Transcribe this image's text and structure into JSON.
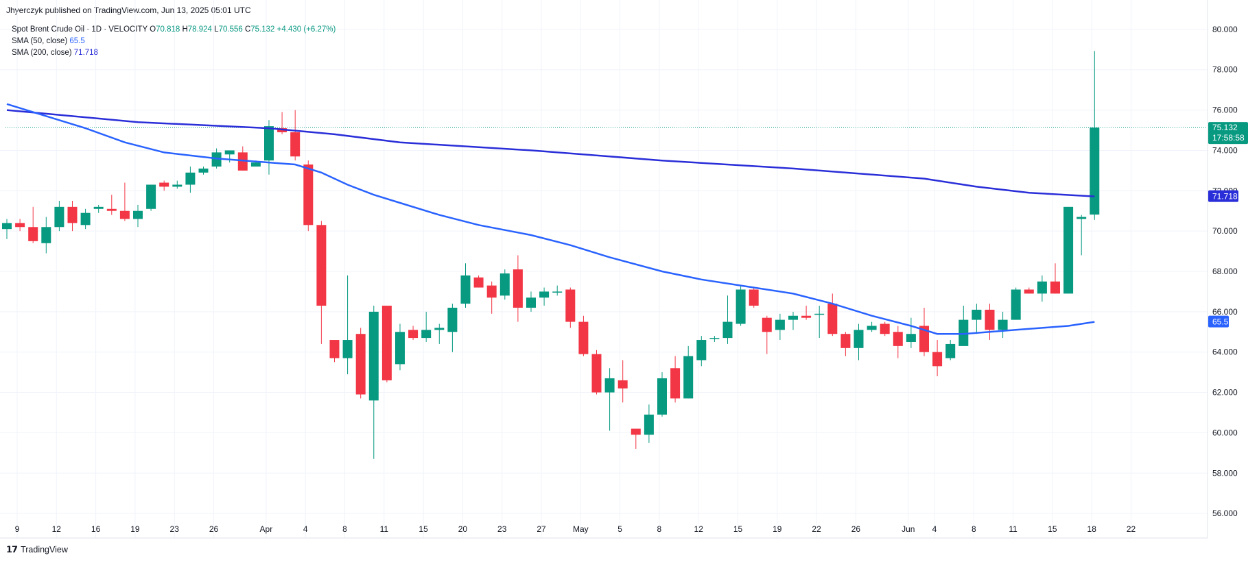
{
  "header": {
    "published": "Jhyerczyk published on TradingView.com, Jun 13, 2025 05:01 UTC"
  },
  "legend": {
    "symbol": "Spot Brent Crude Oil · 1D · VELOCITY",
    "open_label": "O",
    "open": "70.818",
    "high_label": "H",
    "high": "78.924",
    "low_label": "L",
    "low": "70.556",
    "close_label": "C",
    "close": "75.132",
    "change": "+4.430 (+6.27%)",
    "sma50_label": "SMA (50, close)",
    "sma50_value": "65.5",
    "sma200_label": "SMA (200, close)",
    "sma200_value": "71.718"
  },
  "price_tags": {
    "last_price": "75.132",
    "countdown": "17:58:58",
    "sma200": "71.718",
    "sma50": "65.5"
  },
  "footer": {
    "brand": "TradingView",
    "logo_glyph": "𝟭𝟳"
  },
  "colors": {
    "up": "#089981",
    "down": "#f23645",
    "sma50": "#2962ff",
    "sma200": "#2a2ed8",
    "grid": "#f0f3fa",
    "axis_text": "#131722"
  },
  "chart_data": {
    "type": "candlestick",
    "y_ticks": [
      "56.000",
      "58.000",
      "60.000",
      "62.000",
      "64.000",
      "66.000",
      "68.000",
      "70.000",
      "72.000",
      "74.000",
      "76.000",
      "78.000",
      "80.000"
    ],
    "ylim": [
      55.8,
      80.2
    ],
    "x_ticks": [
      "9",
      "12",
      "16",
      "19",
      "23",
      "26",
      "Apr",
      "4",
      "8",
      "11",
      "15",
      "20",
      "23",
      "27",
      "May",
      "5",
      "8",
      "12",
      "15",
      "19",
      "22",
      "26",
      "Jun",
      "4",
      "8",
      "11",
      "15",
      "18",
      "22"
    ],
    "grid": true,
    "candles": [
      {
        "o": 70.1,
        "h": 70.6,
        "l": 69.6,
        "c": 70.4
      },
      {
        "o": 70.4,
        "h": 70.6,
        "l": 70.0,
        "c": 70.2
      },
      {
        "o": 70.2,
        "h": 71.2,
        "l": 69.4,
        "c": 69.5
      },
      {
        "o": 69.4,
        "h": 70.7,
        "l": 68.9,
        "c": 70.2
      },
      {
        "o": 70.2,
        "h": 71.5,
        "l": 70.0,
        "c": 71.2
      },
      {
        "o": 71.2,
        "h": 71.5,
        "l": 70.0,
        "c": 70.4
      },
      {
        "o": 70.3,
        "h": 71.1,
        "l": 70.1,
        "c": 70.9
      },
      {
        "o": 71.1,
        "h": 71.3,
        "l": 70.9,
        "c": 71.2
      },
      {
        "o": 71.1,
        "h": 71.8,
        "l": 70.8,
        "c": 71.0
      },
      {
        "o": 71.0,
        "h": 72.4,
        "l": 70.5,
        "c": 70.6
      },
      {
        "o": 70.6,
        "h": 71.3,
        "l": 70.2,
        "c": 71.0
      },
      {
        "o": 71.1,
        "h": 72.3,
        "l": 71.0,
        "c": 72.3
      },
      {
        "o": 72.4,
        "h": 72.5,
        "l": 72.0,
        "c": 72.2
      },
      {
        "o": 72.2,
        "h": 72.5,
        "l": 72.1,
        "c": 72.3
      },
      {
        "o": 72.3,
        "h": 73.2,
        "l": 71.9,
        "c": 72.9
      },
      {
        "o": 72.9,
        "h": 73.2,
        "l": 72.8,
        "c": 73.1
      },
      {
        "o": 73.2,
        "h": 74.1,
        "l": 73.1,
        "c": 73.9
      },
      {
        "o": 73.8,
        "h": 74.0,
        "l": 73.4,
        "c": 74.0
      },
      {
        "o": 73.9,
        "h": 74.2,
        "l": 73.0,
        "c": 73.0
      },
      {
        "o": 73.2,
        "h": 73.5,
        "l": 73.2,
        "c": 73.4
      },
      {
        "o": 73.5,
        "h": 75.5,
        "l": 72.8,
        "c": 75.2
      },
      {
        "o": 75.1,
        "h": 75.9,
        "l": 74.8,
        "c": 74.9
      },
      {
        "o": 74.9,
        "h": 76.0,
        "l": 73.5,
        "c": 73.7
      },
      {
        "o": 73.3,
        "h": 73.5,
        "l": 70.0,
        "c": 70.3
      },
      {
        "o": 70.3,
        "h": 70.5,
        "l": 64.4,
        "c": 66.3
      },
      {
        "o": 64.6,
        "h": 64.6,
        "l": 63.5,
        "c": 63.7
      },
      {
        "o": 63.7,
        "h": 67.8,
        "l": 62.9,
        "c": 64.6
      },
      {
        "o": 64.9,
        "h": 65.2,
        "l": 61.7,
        "c": 61.9
      },
      {
        "o": 61.6,
        "h": 66.3,
        "l": 58.7,
        "c": 66.0
      },
      {
        "o": 66.3,
        "h": 66.3,
        "l": 62.5,
        "c": 62.6
      },
      {
        "o": 63.4,
        "h": 65.4,
        "l": 63.1,
        "c": 65.0
      },
      {
        "o": 65.1,
        "h": 65.3,
        "l": 64.6,
        "c": 64.7
      },
      {
        "o": 64.7,
        "h": 66.0,
        "l": 64.5,
        "c": 65.1
      },
      {
        "o": 65.1,
        "h": 65.4,
        "l": 64.4,
        "c": 65.2
      },
      {
        "o": 65.0,
        "h": 66.4,
        "l": 64.0,
        "c": 66.2
      },
      {
        "o": 66.4,
        "h": 68.4,
        "l": 66.2,
        "c": 67.8
      },
      {
        "o": 67.7,
        "h": 67.8,
        "l": 67.2,
        "c": 67.2
      },
      {
        "o": 67.3,
        "h": 67.5,
        "l": 65.9,
        "c": 66.7
      },
      {
        "o": 66.8,
        "h": 68.1,
        "l": 66.6,
        "c": 67.9
      },
      {
        "o": 68.1,
        "h": 68.8,
        "l": 65.5,
        "c": 66.2
      },
      {
        "o": 66.2,
        "h": 67.0,
        "l": 66.0,
        "c": 66.7
      },
      {
        "o": 66.7,
        "h": 67.2,
        "l": 66.3,
        "c": 67.0
      },
      {
        "o": 67.0,
        "h": 67.3,
        "l": 66.8,
        "c": 67.0
      },
      {
        "o": 67.1,
        "h": 67.2,
        "l": 65.2,
        "c": 65.5
      },
      {
        "o": 65.5,
        "h": 65.8,
        "l": 63.8,
        "c": 63.9
      },
      {
        "o": 63.9,
        "h": 64.1,
        "l": 61.9,
        "c": 62.0
      },
      {
        "o": 62.0,
        "h": 63.2,
        "l": 60.1,
        "c": 62.7
      },
      {
        "o": 62.6,
        "h": 63.6,
        "l": 61.5,
        "c": 62.2
      },
      {
        "o": 60.2,
        "h": 60.2,
        "l": 59.2,
        "c": 59.9
      },
      {
        "o": 59.9,
        "h": 61.4,
        "l": 59.5,
        "c": 60.9
      },
      {
        "o": 60.9,
        "h": 63.0,
        "l": 60.8,
        "c": 62.7
      },
      {
        "o": 63.2,
        "h": 63.8,
        "l": 61.5,
        "c": 61.7
      },
      {
        "o": 61.7,
        "h": 64.3,
        "l": 61.7,
        "c": 63.8
      },
      {
        "o": 63.6,
        "h": 64.8,
        "l": 63.3,
        "c": 64.6
      },
      {
        "o": 64.7,
        "h": 64.8,
        "l": 64.5,
        "c": 64.7
      },
      {
        "o": 64.7,
        "h": 66.8,
        "l": 64.4,
        "c": 65.5
      },
      {
        "o": 65.4,
        "h": 67.3,
        "l": 65.3,
        "c": 67.1
      },
      {
        "o": 67.1,
        "h": 67.2,
        "l": 66.2,
        "c": 66.3
      },
      {
        "o": 65.7,
        "h": 65.8,
        "l": 63.9,
        "c": 65.0
      },
      {
        "o": 65.1,
        "h": 65.9,
        "l": 64.6,
        "c": 65.6
      },
      {
        "o": 65.6,
        "h": 66.0,
        "l": 65.1,
        "c": 65.8
      },
      {
        "o": 65.8,
        "h": 66.3,
        "l": 65.6,
        "c": 65.7
      },
      {
        "o": 65.9,
        "h": 66.3,
        "l": 64.7,
        "c": 65.9
      },
      {
        "o": 66.4,
        "h": 66.9,
        "l": 64.8,
        "c": 64.9
      },
      {
        "o": 64.9,
        "h": 65.0,
        "l": 63.8,
        "c": 64.2
      },
      {
        "o": 64.2,
        "h": 65.4,
        "l": 63.6,
        "c": 65.1
      },
      {
        "o": 65.1,
        "h": 65.5,
        "l": 65.0,
        "c": 65.3
      },
      {
        "o": 65.4,
        "h": 65.5,
        "l": 64.8,
        "c": 64.9
      },
      {
        "o": 65.0,
        "h": 65.3,
        "l": 63.7,
        "c": 64.3
      },
      {
        "o": 64.5,
        "h": 65.7,
        "l": 64.2,
        "c": 64.9
      },
      {
        "o": 65.3,
        "h": 66.2,
        "l": 63.8,
        "c": 64.0
      },
      {
        "o": 64.0,
        "h": 64.6,
        "l": 62.8,
        "c": 63.3
      },
      {
        "o": 63.7,
        "h": 64.6,
        "l": 63.6,
        "c": 64.4
      },
      {
        "o": 64.3,
        "h": 66.3,
        "l": 64.3,
        "c": 65.6
      },
      {
        "o": 65.6,
        "h": 66.4,
        "l": 64.9,
        "c": 66.1
      },
      {
        "o": 66.1,
        "h": 66.4,
        "l": 64.6,
        "c": 65.1
      },
      {
        "o": 65.1,
        "h": 66.0,
        "l": 64.7,
        "c": 65.6
      },
      {
        "o": 65.6,
        "h": 67.2,
        "l": 65.6,
        "c": 67.1
      },
      {
        "o": 67.1,
        "h": 67.2,
        "l": 66.9,
        "c": 66.9
      },
      {
        "o": 66.9,
        "h": 67.8,
        "l": 66.5,
        "c": 67.5
      },
      {
        "o": 67.5,
        "h": 68.4,
        "l": 66.9,
        "c": 66.9
      },
      {
        "o": 66.9,
        "h": 71.2,
        "l": 66.9,
        "c": 71.2
      },
      {
        "o": 70.6,
        "h": 70.8,
        "l": 68.8,
        "c": 70.7
      },
      {
        "o": 70.818,
        "h": 78.924,
        "l": 70.556,
        "c": 75.132
      }
    ],
    "sma50": [
      {
        "i": 0,
        "v": 76.3
      },
      {
        "i": 3,
        "v": 75.7
      },
      {
        "i": 6,
        "v": 75.1
      },
      {
        "i": 9,
        "v": 74.4
      },
      {
        "i": 12,
        "v": 73.9
      },
      {
        "i": 16,
        "v": 73.6
      },
      {
        "i": 20,
        "v": 73.4
      },
      {
        "i": 22,
        "v": 73.3
      },
      {
        "i": 24,
        "v": 72.9
      },
      {
        "i": 26,
        "v": 72.3
      },
      {
        "i": 28,
        "v": 71.8
      },
      {
        "i": 30,
        "v": 71.4
      },
      {
        "i": 33,
        "v": 70.8
      },
      {
        "i": 36,
        "v": 70.3
      },
      {
        "i": 40,
        "v": 69.8
      },
      {
        "i": 43,
        "v": 69.3
      },
      {
        "i": 46,
        "v": 68.7
      },
      {
        "i": 50,
        "v": 68.0
      },
      {
        "i": 53,
        "v": 67.6
      },
      {
        "i": 56,
        "v": 67.3
      },
      {
        "i": 60,
        "v": 66.9
      },
      {
        "i": 63,
        "v": 66.4
      },
      {
        "i": 66,
        "v": 65.8
      },
      {
        "i": 69,
        "v": 65.3
      },
      {
        "i": 71,
        "v": 64.9
      },
      {
        "i": 73,
        "v": 64.9
      },
      {
        "i": 75,
        "v": 65.0
      },
      {
        "i": 77,
        "v": 65.1
      },
      {
        "i": 79,
        "v": 65.2
      },
      {
        "i": 81,
        "v": 65.3
      },
      {
        "i": 83,
        "v": 65.5
      }
    ],
    "sma200": [
      {
        "i": 0,
        "v": 76.0
      },
      {
        "i": 10,
        "v": 75.4
      },
      {
        "i": 20,
        "v": 75.1
      },
      {
        "i": 25,
        "v": 74.8
      },
      {
        "i": 30,
        "v": 74.4
      },
      {
        "i": 40,
        "v": 74.0
      },
      {
        "i": 50,
        "v": 73.5
      },
      {
        "i": 60,
        "v": 73.1
      },
      {
        "i": 70,
        "v": 72.6
      },
      {
        "i": 74,
        "v": 72.2
      },
      {
        "i": 78,
        "v": 71.9
      },
      {
        "i": 83,
        "v": 71.718
      }
    ]
  }
}
